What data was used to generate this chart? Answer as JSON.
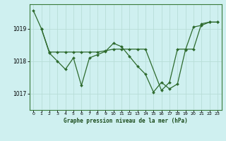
{
  "title": "Graphe pression niveau de la mer (hPa)",
  "background_color": "#cff0f0",
  "line_color": "#2d6a2d",
  "grid_color": "#b8ddd8",
  "grid_color2": "#d0eeee",
  "xlim": [
    -0.5,
    23.5
  ],
  "ylim": [
    1016.5,
    1019.75
  ],
  "yticks": [
    1017,
    1018,
    1019
  ],
  "xticks": [
    0,
    1,
    2,
    3,
    4,
    5,
    6,
    7,
    8,
    9,
    10,
    11,
    12,
    13,
    14,
    15,
    16,
    17,
    18,
    19,
    20,
    21,
    22,
    23
  ],
  "series1_x": [
    0,
    1,
    2,
    3,
    4,
    5,
    6,
    7,
    8,
    9,
    10,
    11,
    12,
    13,
    14,
    15,
    16,
    17,
    18,
    19,
    20,
    21,
    22,
    23
  ],
  "series1_y": [
    1019.55,
    1019.0,
    1018.25,
    1018.0,
    1017.75,
    1018.1,
    1017.25,
    1018.1,
    1018.2,
    1018.3,
    1018.55,
    1018.45,
    1018.15,
    1017.85,
    1017.6,
    1017.05,
    1017.35,
    1017.15,
    1017.3,
    1018.35,
    1019.05,
    1019.1,
    1019.2,
    1019.2
  ],
  "series2_x": [
    1,
    2,
    3,
    4,
    5,
    6,
    7,
    8,
    9,
    10,
    11,
    12,
    13,
    14,
    16,
    17,
    18,
    19,
    20,
    21,
    22,
    23
  ],
  "series2_y": [
    1019.0,
    1018.28,
    1018.28,
    1018.28,
    1018.28,
    1018.28,
    1018.28,
    1018.28,
    1018.32,
    1018.37,
    1018.37,
    1018.37,
    1018.37,
    1018.37,
    1017.1,
    1017.35,
    1018.37,
    1018.37,
    1018.37,
    1019.15,
    1019.2,
    1019.2
  ]
}
